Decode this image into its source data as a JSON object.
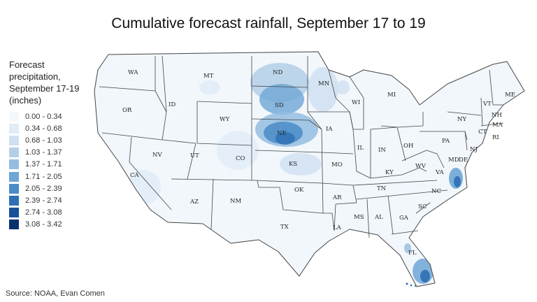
{
  "title": "Cumulative forecast rainfall, September 17 to 19",
  "legend": {
    "title_lines": [
      "Forecast",
      "precipitation,",
      "September 17-19",
      "(inches)"
    ],
    "items": [
      {
        "label": "0.00 - 0.34",
        "color": "#f4f8fc"
      },
      {
        "label": "0.34 - 0.68",
        "color": "#e1ecf7"
      },
      {
        "label": "0.68 - 1.03",
        "color": "#cfe0f1"
      },
      {
        "label": "1.03 - 1.37",
        "color": "#b3cfe8"
      },
      {
        "label": "1.37 - 1.71",
        "color": "#94bde0"
      },
      {
        "label": "1.71 - 2.05",
        "color": "#6ea6d6"
      },
      {
        "label": "2.05 - 2.39",
        "color": "#4a8bc8"
      },
      {
        "label": "2.39 - 2.74",
        "color": "#2d6fb4"
      },
      {
        "label": "2.74 - 3.08",
        "color": "#18519a"
      },
      {
        "label": "3.08 - 3.42",
        "color": "#0b306e"
      }
    ]
  },
  "states": [
    "WA",
    "OR",
    "CA",
    "ID",
    "NV",
    "MT",
    "WY",
    "UT",
    "AZ",
    "CO",
    "NM",
    "ND",
    "SD",
    "NE",
    "KS",
    "OK",
    "TX",
    "MN",
    "IA",
    "MO",
    "AR",
    "LA",
    "WI",
    "IL",
    "MI",
    "IN",
    "OH",
    "KY",
    "TN",
    "MS",
    "AL",
    "GA",
    "FL",
    "SC",
    "NC",
    "VA",
    "WV",
    "PA",
    "NY",
    "MD",
    "DE",
    "NJ",
    "CT",
    "RI",
    "MA",
    "VT",
    "NH",
    "ME"
  ],
  "source": "Source: NOAA, Evan Comen"
}
